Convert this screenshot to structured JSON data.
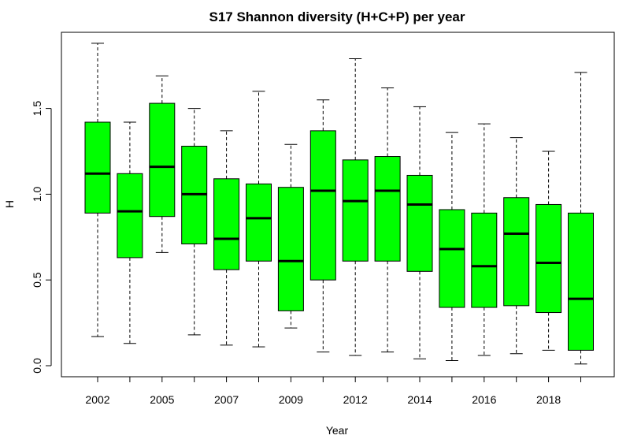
{
  "chart_data": {
    "type": "boxplot",
    "title": "S17 Shannon diversity (H+C+P) per year",
    "xlabel": "Year",
    "ylabel": "H",
    "ylim": [
      0,
      1.9
    ],
    "y_ticks": [
      "0.0",
      "0.5",
      "1.0",
      "1.5"
    ],
    "y_tick_values": [
      0,
      0.5,
      1.0,
      1.5
    ],
    "box_color": "#00ff00",
    "x_tick_labels": [
      "2002",
      "",
      "2005",
      "",
      "2007",
      "",
      "2009",
      "",
      "2012",
      "",
      "2014",
      "",
      "2016",
      "",
      "2018",
      ""
    ],
    "boxes": [
      {
        "min": 0.17,
        "q1": 0.89,
        "median": 1.12,
        "q3": 1.42,
        "max": 1.88
      },
      {
        "min": 0.13,
        "q1": 0.63,
        "median": 0.9,
        "q3": 1.12,
        "max": 1.42
      },
      {
        "min": 0.66,
        "q1": 0.87,
        "median": 1.16,
        "q3": 1.53,
        "max": 1.69
      },
      {
        "min": 0.18,
        "q1": 0.71,
        "median": 1.0,
        "q3": 1.28,
        "max": 1.5
      },
      {
        "min": 0.12,
        "q1": 0.56,
        "median": 0.74,
        "q3": 1.09,
        "max": 1.37
      },
      {
        "min": 0.11,
        "q1": 0.61,
        "median": 0.86,
        "q3": 1.06,
        "max": 1.6
      },
      {
        "min": 0.22,
        "q1": 0.32,
        "median": 0.61,
        "q3": 1.04,
        "max": 1.29
      },
      {
        "min": 0.08,
        "q1": 0.5,
        "median": 1.02,
        "q3": 1.37,
        "max": 1.55
      },
      {
        "min": 0.06,
        "q1": 0.61,
        "median": 0.96,
        "q3": 1.2,
        "max": 1.79
      },
      {
        "min": 0.08,
        "q1": 0.61,
        "median": 1.02,
        "q3": 1.22,
        "max": 1.62
      },
      {
        "min": 0.04,
        "q1": 0.55,
        "median": 0.94,
        "q3": 1.11,
        "max": 1.51
      },
      {
        "min": 0.03,
        "q1": 0.34,
        "median": 0.68,
        "q3": 0.91,
        "max": 1.36
      },
      {
        "min": 0.06,
        "q1": 0.34,
        "median": 0.58,
        "q3": 0.89,
        "max": 1.41
      },
      {
        "min": 0.07,
        "q1": 0.35,
        "median": 0.77,
        "q3": 0.98,
        "max": 1.33
      },
      {
        "min": 0.09,
        "q1": 0.31,
        "median": 0.6,
        "q3": 0.94,
        "max": 1.25
      },
      {
        "min": 0.01,
        "q1": 0.09,
        "median": 0.39,
        "q3": 0.89,
        "max": 1.71
      }
    ]
  }
}
